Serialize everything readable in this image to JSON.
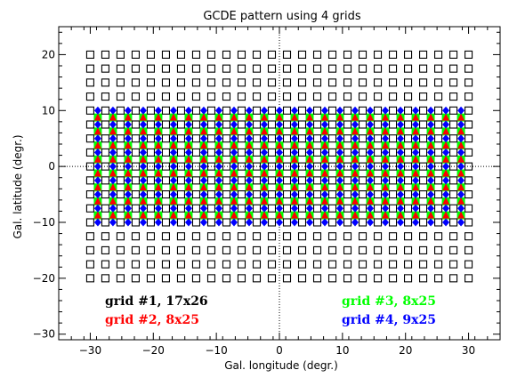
{
  "chart_data": {
    "type": "scatter",
    "title": "GCDE pattern using 4 grids",
    "xlabel": "Gal. longitude (degr.)",
    "ylabel": "Gal. latitude (degr.)",
    "xlim": [
      -35,
      35
    ],
    "ylim": [
      -31,
      25
    ],
    "xticks": [
      -30,
      -20,
      -10,
      0,
      10,
      20,
      30
    ],
    "yticks": [
      -30,
      -20,
      -10,
      0,
      10,
      20
    ],
    "xtick_labels": [
      "−30",
      "−20",
      "−10",
      "0",
      "10",
      "20",
      "30"
    ],
    "ytick_labels": [
      "−30",
      "−20",
      "−10",
      "0",
      "10",
      "20"
    ],
    "grid": false,
    "reference_lines": {
      "x": 0,
      "y": 0,
      "style": "dotted"
    },
    "series": [
      {
        "name": "grid #1, 17x26",
        "color": "#000000",
        "marker": "open-square",
        "x_start": -30,
        "x_step": 2.4,
        "x_count": 26,
        "y_start": -20,
        "y_step": 2.5,
        "y_count": 17
      },
      {
        "name": "grid #2, 8x25",
        "color": "#ff0000",
        "marker": "filled-triangle",
        "x_start": -28.8,
        "x_step": 2.4,
        "x_count": 25,
        "y_start": -8.75,
        "y_step": 2.5,
        "y_count": 8
      },
      {
        "name": "grid #3, 8x25",
        "color": "#00ff00",
        "marker": "filled-square",
        "x_start": -28.8,
        "x_step": 2.4,
        "x_count": 25,
        "y_start": -8.75,
        "y_step": 2.5,
        "y_count": 8
      },
      {
        "name": "grid #4, 9x25",
        "color": "#0000ff",
        "marker": "filled-diamond",
        "x_start": -28.8,
        "x_step": 2.4,
        "x_count": 25,
        "y_start": -10,
        "y_step": 2.5,
        "y_count": 9
      }
    ]
  }
}
